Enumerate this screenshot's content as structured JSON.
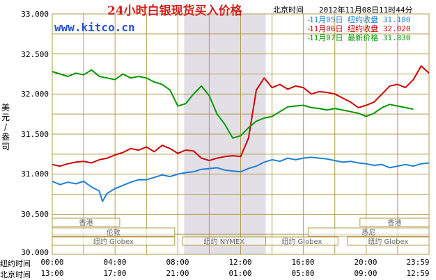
{
  "title": "24小时白银现货买入价格",
  "beijing_label": "北京时间",
  "timestamp": "2012年11月08日11时44分",
  "brand": "www.kitco.cn",
  "ylabel": [
    "美",
    "元",
    "/",
    "盎",
    "司"
  ],
  "legend": [
    {
      "date": "11月05日",
      "label": "纽约收盘",
      "value": "31.180",
      "color": "#1f7fd6"
    },
    {
      "date": "11月06日",
      "label": "纽约收盘",
      "value": "32.020",
      "color": "#cc0000"
    },
    {
      "date": "11月07日",
      "label": "最新价格",
      "value": "31.830",
      "color": "#009900"
    }
  ],
  "xaxis": {
    "ny_label": "纽约时间",
    "bj_label": "北京时间",
    "ny_ticks": [
      "00:00",
      "04:00",
      "08:00",
      "12:00",
      "16:00",
      "20:00",
      "23:59"
    ],
    "bj_ticks": [
      "13:00",
      "17:00",
      "21:00",
      "01:00",
      "05:00",
      "09:00",
      "12:59"
    ]
  },
  "sessions": [
    {
      "name": "香港",
      "row": 1,
      "start": 0,
      "end": 4.3
    },
    {
      "name": "伦敦",
      "row": 2,
      "start": 0,
      "end": 7.8
    },
    {
      "name": "纽约 Globex",
      "row": 3,
      "start": 0,
      "end": 7.8
    },
    {
      "name": "纽约 NYMEX",
      "row": 3,
      "start": 8.3,
      "end": 13.6
    },
    {
      "name": "纽约 Globex",
      "row": 3,
      "start": 13.6,
      "end": 18.2
    },
    {
      "name": "香港",
      "row": 1,
      "start": 19.6,
      "end": 24
    },
    {
      "name": "悉尼",
      "row": 2,
      "start": 16.3,
      "end": 24
    },
    {
      "name": "纽约 Globex",
      "row": 3,
      "start": 18.8,
      "end": 24
    }
  ],
  "chart_data": {
    "type": "line",
    "title": "24小时白银现货买入价格",
    "ylabel": "美元/盎司",
    "xlabel": "纽约时间 / 北京时间",
    "ylim": [
      30.0,
      33.0
    ],
    "yticks": [
      "30.000",
      "30.500",
      "31.000",
      "31.500",
      "32.000",
      "32.500",
      "33.000"
    ],
    "xlim": [
      0,
      24
    ],
    "grid": true,
    "legend_position": "top-right",
    "shaded_region": [
      8.4,
      13.6
    ],
    "series": [
      {
        "name": "11月05日",
        "color": "#1f7fd6",
        "x": [
          0,
          0.5,
          1,
          1.5,
          2,
          2.5,
          3,
          3.2,
          3.5,
          4,
          4.5,
          5,
          5.5,
          6,
          6.5,
          7,
          7.5,
          8,
          8.5,
          9,
          9.5,
          10,
          10.5,
          11,
          11.5,
          12,
          12.5,
          13,
          13.5,
          14,
          14.5,
          15,
          15.5,
          16,
          16.5,
          17,
          17.5,
          18,
          18.5,
          19,
          19.5,
          20,
          20.5,
          21,
          21.5,
          22,
          22.5,
          23,
          23.5,
          24
        ],
        "y": [
          30.91,
          30.87,
          30.9,
          30.88,
          30.91,
          30.84,
          30.79,
          30.66,
          30.76,
          30.82,
          30.86,
          30.9,
          30.93,
          30.93,
          30.96,
          30.99,
          30.97,
          31.0,
          31.02,
          31.03,
          31.06,
          31.07,
          31.08,
          31.05,
          31.04,
          31.03,
          31.07,
          31.1,
          31.15,
          31.18,
          31.16,
          31.2,
          31.18,
          31.2,
          31.21,
          31.2,
          31.19,
          31.17,
          31.15,
          31.16,
          31.14,
          31.13,
          31.11,
          31.12,
          31.08,
          31.1,
          31.12,
          31.1,
          31.13,
          31.14
        ]
      },
      {
        "name": "11月06日",
        "color": "#cc0000",
        "x": [
          0,
          0.5,
          1,
          1.5,
          2,
          2.5,
          3,
          3.5,
          4,
          4.5,
          5,
          5.5,
          6,
          6.5,
          7,
          7.5,
          8,
          8.5,
          9,
          9.5,
          10,
          10.5,
          11,
          11.5,
          12,
          12.5,
          13,
          13.5,
          14,
          14.5,
          15,
          15.5,
          16,
          16.5,
          17,
          17.5,
          18,
          18.5,
          19,
          19.5,
          20,
          20.5,
          21,
          21.5,
          22,
          22.5,
          23,
          23.5,
          24
        ],
        "y": [
          31.12,
          31.1,
          31.13,
          31.15,
          31.16,
          31.14,
          31.18,
          31.2,
          31.24,
          31.27,
          31.32,
          31.3,
          31.34,
          31.28,
          31.36,
          31.32,
          31.26,
          31.3,
          31.29,
          31.2,
          31.17,
          31.2,
          31.22,
          31.23,
          31.22,
          31.45,
          32.05,
          32.2,
          32.08,
          32.12,
          32.06,
          32.1,
          32.08,
          32.0,
          32.03,
          32.02,
          32.0,
          31.95,
          31.9,
          31.83,
          31.86,
          31.9,
          32.0,
          32.1,
          32.12,
          32.08,
          32.18,
          32.35,
          32.26
        ]
      },
      {
        "name": "11月07日",
        "color": "#009900",
        "x": [
          0,
          0.5,
          1,
          1.5,
          2,
          2.5,
          3,
          3.5,
          4,
          4.5,
          5,
          5.5,
          6,
          6.5,
          7,
          7.5,
          8,
          8.5,
          9,
          9.5,
          10,
          10.5,
          11,
          11,
          11.5,
          12,
          12.5,
          13,
          13.5,
          14,
          14.5,
          15,
          15.5,
          16,
          16.5,
          17,
          17.5,
          18,
          18.5,
          19,
          19.5,
          20,
          20.5,
          21,
          21.5,
          22,
          22.5,
          23
        ],
        "y": [
          32.28,
          32.25,
          32.22,
          32.26,
          32.24,
          32.3,
          32.22,
          32.2,
          32.18,
          32.25,
          32.2,
          32.22,
          32.2,
          32.15,
          32.12,
          32.05,
          31.85,
          31.88,
          32.0,
          32.1,
          31.98,
          31.75,
          31.62,
          31.62,
          31.45,
          31.48,
          31.58,
          31.66,
          31.7,
          31.72,
          31.78,
          31.84,
          31.85,
          31.86,
          31.83,
          31.82,
          31.8,
          31.82,
          31.8,
          31.78,
          31.76,
          31.72,
          31.76,
          31.83,
          31.87,
          31.85,
          31.83,
          31.81
        ]
      }
    ]
  }
}
